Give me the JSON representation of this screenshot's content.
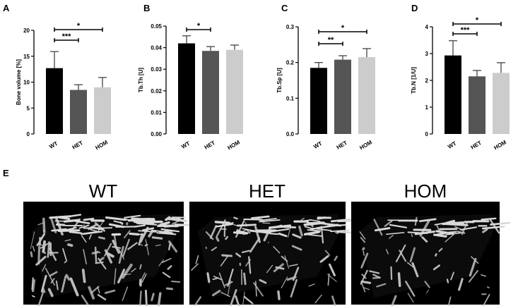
{
  "colors": {
    "WT": "#000000",
    "HET": "#555555",
    "HOM": "#cccccc",
    "render_bg": "#000000",
    "bone": "#c4c4c4"
  },
  "chart_data": [
    {
      "type": "bar",
      "panel": "A",
      "categories": [
        "WT",
        "HET",
        "HOM"
      ],
      "values": [
        12.7,
        8.5,
        9.0
      ],
      "errors": [
        3.2,
        1.0,
        1.9
      ],
      "ylabel": "Bone volume [%]",
      "ylim": [
        0,
        20
      ],
      "yticks": [
        "0",
        "5",
        "10",
        "15",
        "20"
      ],
      "significance": [
        {
          "from": 0,
          "to": 1,
          "label": "***"
        },
        {
          "from": 0,
          "to": 2,
          "label": "*"
        }
      ]
    },
    {
      "type": "bar",
      "panel": "B",
      "categories": [
        "WT",
        "HET",
        "HOM"
      ],
      "values": [
        0.042,
        0.0385,
        0.039
      ],
      "errors": [
        0.0035,
        0.002,
        0.0022
      ],
      "ylabel": "Tb.Th [U]",
      "ylim": [
        0,
        0.05
      ],
      "yticks": [
        "0.00",
        "0.01",
        "0.02",
        "0.03",
        "0.04",
        "0.05"
      ],
      "significance": [
        {
          "from": 0,
          "to": 1,
          "label": "*"
        }
      ]
    },
    {
      "type": "bar",
      "panel": "C",
      "categories": [
        "WT",
        "HET",
        "HOM"
      ],
      "values": [
        0.185,
        0.208,
        0.215
      ],
      "errors": [
        0.015,
        0.011,
        0.024
      ],
      "ylabel": "Tb.Sp [U]",
      "ylim": [
        0,
        0.3
      ],
      "yticks": [
        "0.0",
        "0.1",
        "0.2",
        "0.3"
      ],
      "significance": [
        {
          "from": 0,
          "to": 1,
          "label": "**"
        },
        {
          "from": 0,
          "to": 2,
          "label": "*"
        }
      ]
    },
    {
      "type": "bar",
      "panel": "D",
      "categories": [
        "WT",
        "HET",
        "HOM"
      ],
      "values": [
        2.93,
        2.15,
        2.28
      ],
      "errors": [
        0.55,
        0.22,
        0.38
      ],
      "ylabel": "Tb.N [1/U]",
      "ylim": [
        0,
        4
      ],
      "yticks": [
        "0",
        "1",
        "2",
        "3",
        "4"
      ],
      "significance": [
        {
          "from": 0,
          "to": 1,
          "label": "***"
        },
        {
          "from": 0,
          "to": 2,
          "label": "*"
        }
      ]
    }
  ],
  "render_panel": {
    "letter": "E",
    "titles": [
      "WT",
      "HET",
      "HOM"
    ]
  }
}
